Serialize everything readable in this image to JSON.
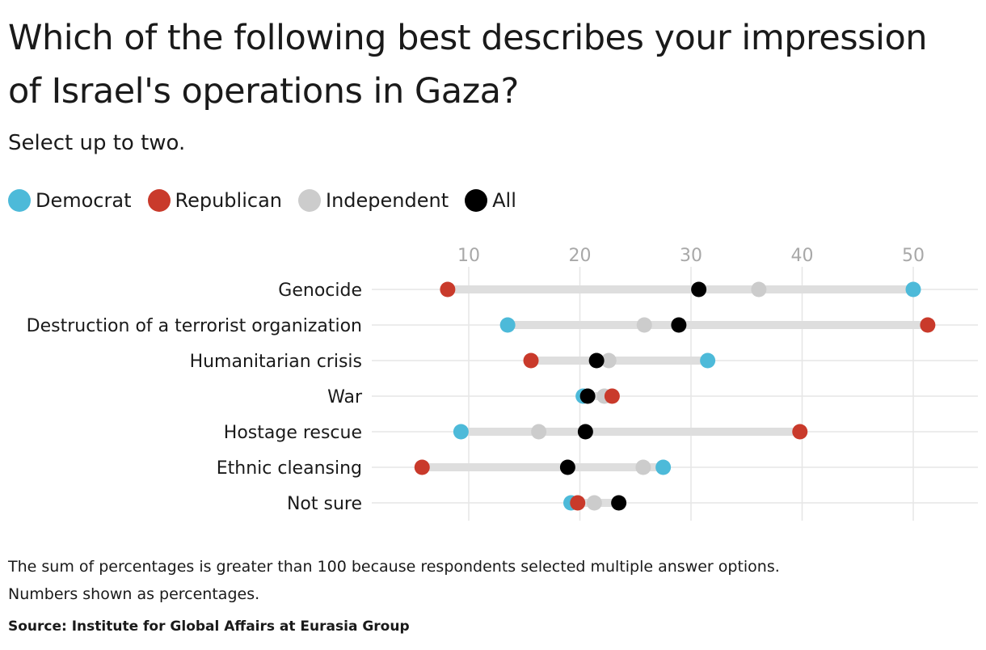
{
  "title": "Which of the following best describes your impression of Israel's operations in Gaza?",
  "subtitle": "Select up to two.",
  "legend": [
    {
      "label": "Democrat",
      "color": "#4dbad9"
    },
    {
      "label": "Republican",
      "color": "#c93a2b"
    },
    {
      "label": "Independent",
      "color": "#cccccc"
    },
    {
      "label": "All",
      "color": "#000000"
    }
  ],
  "note_line1": "The sum of percentages is greater than 100 because respondents selected multiple answer options.",
  "note_line2": "Numbers shown as percentages.",
  "source": "Source: Institute for Global Affairs at Eurasia Group",
  "chart_data": {
    "type": "scatter",
    "orientation": "horizontal dot plot",
    "categories": [
      "Genocide",
      "Destruction of a terrorist organization",
      "Humanitarian crisis",
      "War",
      "Hostage rescue",
      "Ethnic cleansing",
      "Not sure"
    ],
    "x_ticks": [
      10,
      20,
      30,
      40,
      50
    ],
    "xlim": [
      1,
      56
    ],
    "grid": true,
    "legend_position": "top-left",
    "series": [
      {
        "name": "Democrat",
        "color": "#4dbad9",
        "values": [
          50,
          13.5,
          31.5,
          20.3,
          9.3,
          27.5,
          19.2
        ]
      },
      {
        "name": "Republican",
        "color": "#c93a2b",
        "values": [
          8.1,
          51.3,
          15.6,
          22.9,
          39.8,
          5.8,
          19.8
        ]
      },
      {
        "name": "Independent",
        "color": "#cccccc",
        "values": [
          36.1,
          25.8,
          22.6,
          22.2,
          16.3,
          25.7,
          21.3
        ]
      },
      {
        "name": "All",
        "color": "#000000",
        "values": [
          30.7,
          28.9,
          21.5,
          20.7,
          20.5,
          18.9,
          23.5
        ]
      }
    ]
  }
}
